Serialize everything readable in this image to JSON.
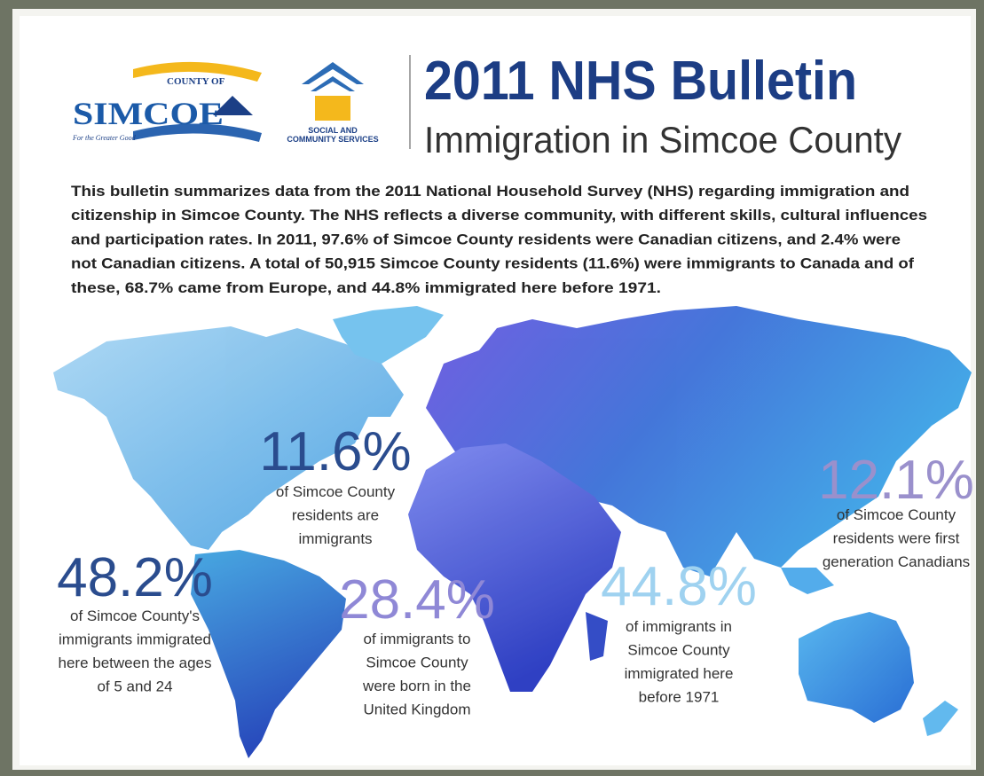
{
  "logos": {
    "county": {
      "top": "COUNTY OF",
      "name": "SIMCOE",
      "tagline": "For the Greater Good"
    },
    "services": {
      "line1": "SOCIAL AND",
      "line2": "COMMUNITY SERVICES"
    }
  },
  "header": {
    "title": "2011 NHS Bulletin",
    "subtitle": "Immigration in Simcoe County"
  },
  "intro": [
    "This bulletin summarizes data from the 2011 National Household Survey (NHS) regarding immigration and",
    "citizenship in Simcoe County. The NHS reflects a diverse community, with different skills, cultural influences",
    "and participation rates. In 2011, 97.6% of Simcoe County residents were Canadian citizens, and 2.4% were",
    "not Canadian citizens. A total of 50,915 Simcoe County residents (11.6%) were immigrants to Canada and of",
    "these, 68.7% came from Europe, and 44.8% immigrated here before 1971."
  ],
  "stats": [
    {
      "value": "11.6%",
      "text": [
        "of Simcoe County",
        "residents are",
        "immigrants"
      ]
    },
    {
      "value": "48.2%",
      "text": [
        "of Simcoe County's",
        "immigrants immigrated",
        "here between the ages",
        "of 5 and 24"
      ]
    },
    {
      "value": "28.4%",
      "text": [
        "of immigrants to",
        "Simcoe County",
        "were born in the",
        "United Kingdom"
      ]
    },
    {
      "value": "44.8%",
      "text": [
        "of immigrants in",
        "Simcoe County",
        "immigrated here",
        "before 1971"
      ]
    },
    {
      "value": "12.1%",
      "text": [
        "of Simcoe County",
        "residents were first",
        "generation Canadians"
      ]
    }
  ]
}
